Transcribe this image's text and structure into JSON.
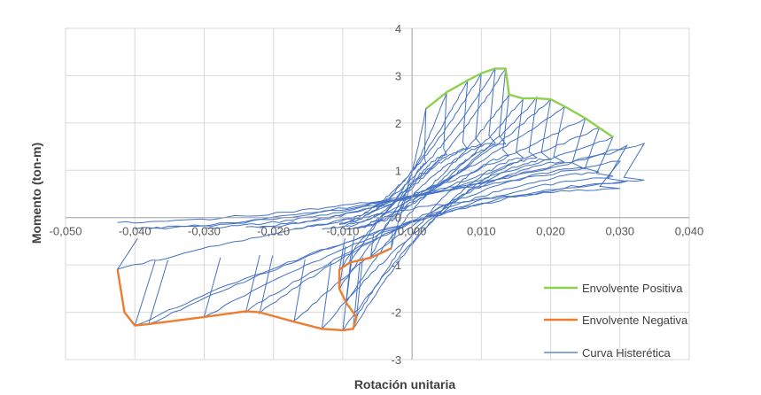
{
  "chart_data": {
    "type": "line",
    "title": "",
    "xlabel": "Rotación unitaria",
    "ylabel": "Momento (ton-m)",
    "xlim": [
      -0.05,
      0.04
    ],
    "ylim": [
      -3,
      4
    ],
    "x_ticks": [
      -0.05,
      -0.04,
      -0.03,
      -0.02,
      -0.01,
      0.0,
      0.01,
      0.02,
      0.03,
      0.04
    ],
    "x_tick_labels": [
      "-0,050",
      "-0,040",
      "-0,030",
      "-0,020",
      "-0,010",
      "0,000",
      "0,010",
      "0,020",
      "0,030",
      "0,040"
    ],
    "y_ticks": [
      -3,
      -2,
      -1,
      0,
      1,
      2,
      3,
      4
    ],
    "y_tick_labels": [
      "-3",
      "-2",
      "-1",
      "0",
      "1",
      "2",
      "3",
      "4"
    ],
    "grid": true,
    "legend_position": "right",
    "series": [
      {
        "name": "Envolvente Positiva",
        "color": "#8fd14f",
        "points": [
          [
            0.002,
            2.3
          ],
          [
            0.005,
            2.65
          ],
          [
            0.008,
            2.9
          ],
          [
            0.01,
            3.05
          ],
          [
            0.012,
            3.15
          ],
          [
            0.0135,
            3.15
          ],
          [
            0.014,
            2.6
          ],
          [
            0.016,
            2.52
          ],
          [
            0.018,
            2.52
          ],
          [
            0.02,
            2.5
          ],
          [
            0.022,
            2.35
          ],
          [
            0.025,
            2.1
          ],
          [
            0.027,
            1.9
          ],
          [
            0.029,
            1.7
          ]
        ]
      },
      {
        "name": "Envolvente Negativa",
        "color": "#ed7d31",
        "points": [
          [
            -0.003,
            -0.65
          ],
          [
            -0.006,
            -0.85
          ],
          [
            -0.009,
            -0.95
          ],
          [
            -0.0105,
            -1.1
          ],
          [
            -0.0105,
            -1.5
          ],
          [
            -0.0095,
            -1.8
          ],
          [
            -0.008,
            -2.1
          ],
          [
            -0.0085,
            -2.35
          ],
          [
            -0.01,
            -2.38
          ],
          [
            -0.013,
            -2.35
          ],
          [
            -0.017,
            -2.2
          ],
          [
            -0.022,
            -2.0
          ],
          [
            -0.024,
            -1.98
          ],
          [
            -0.03,
            -2.1
          ],
          [
            -0.038,
            -2.25
          ],
          [
            -0.04,
            -2.28
          ],
          [
            -0.0415,
            -2.0
          ],
          [
            -0.0425,
            -1.1
          ]
        ]
      },
      {
        "name": "Curva Histerética",
        "color": "#4472c4",
        "loops": [
          {
            "xmax": 0.002,
            "ymax": 2.3,
            "xmin": -0.003,
            "ymin": -0.65
          },
          {
            "xmax": 0.005,
            "ymax": 2.65,
            "xmin": -0.006,
            "ymin": -0.85
          },
          {
            "xmax": 0.008,
            "ymax": 2.9,
            "xmin": -0.009,
            "ymin": -0.95
          },
          {
            "xmax": 0.01,
            "ymax": 3.05,
            "xmin": -0.0105,
            "ymin": -1.1
          },
          {
            "xmax": 0.012,
            "ymax": 3.15,
            "xmin": -0.0105,
            "ymin": -1.5
          },
          {
            "xmax": 0.0135,
            "ymax": 3.15,
            "xmin": -0.0095,
            "ymin": -1.8
          },
          {
            "xmax": 0.014,
            "ymax": 2.6,
            "xmin": -0.008,
            "ymin": -2.1
          },
          {
            "xmax": 0.016,
            "ymax": 2.52,
            "xmin": -0.0085,
            "ymin": -2.35
          },
          {
            "xmax": 0.018,
            "ymax": 2.52,
            "xmin": -0.01,
            "ymin": -2.38
          },
          {
            "xmax": 0.02,
            "ymax": 2.5,
            "xmin": -0.013,
            "ymin": -2.35
          },
          {
            "xmax": 0.022,
            "ymax": 2.35,
            "xmin": -0.017,
            "ymin": -2.2
          },
          {
            "xmax": 0.025,
            "ymax": 2.1,
            "xmin": -0.022,
            "ymin": -2.0
          },
          {
            "xmax": 0.027,
            "ymax": 1.9,
            "xmin": -0.024,
            "ymin": -1.98
          },
          {
            "xmax": 0.029,
            "ymax": 1.7,
            "xmin": -0.03,
            "ymin": -2.1
          },
          {
            "xmax": 0.031,
            "ymax": 1.5,
            "xmin": -0.038,
            "ymin": -2.25
          },
          {
            "xmax": 0.0335,
            "ymax": 1.55,
            "xmin": -0.04,
            "ymin": -2.28
          },
          {
            "xmax": 0.03,
            "ymax": 1.2,
            "xmin": -0.0425,
            "ymin": -1.1
          }
        ]
      }
    ],
    "legend": [
      "Envolvente Positiva",
      "Envolvente Negativa",
      "Curva Histerética"
    ]
  }
}
